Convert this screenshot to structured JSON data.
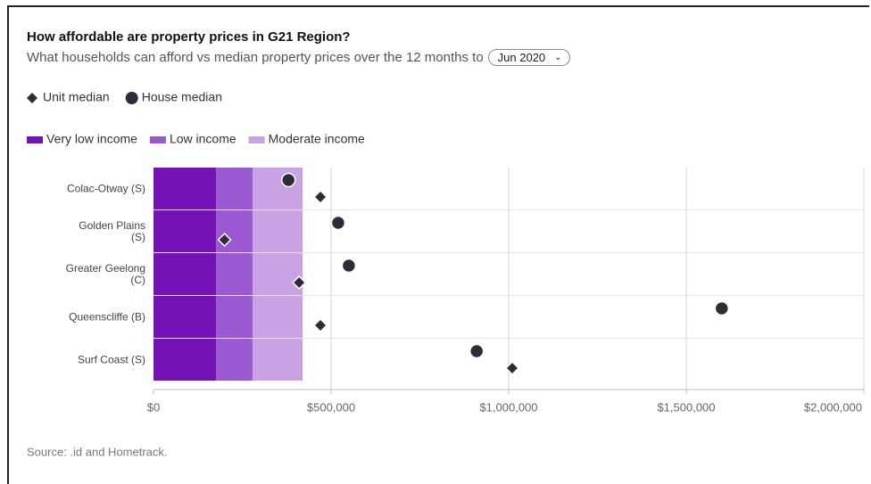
{
  "chart_data": {
    "type": "dot",
    "title": "How affordable are property prices in G21 Region?",
    "subtitle": "What households can afford vs median property prices over the 12 months to",
    "selected_period": "Jun 2020",
    "categories": [
      "Colac-Otway (S)",
      "Golden Plains\n(S)",
      "Greater Geelong\n(C)",
      "Queenscliffe (B)",
      "Surf Coast (S)"
    ],
    "series": [
      {
        "name": "Very low income",
        "color": "#7412b8",
        "values": [
          176000,
          176000,
          176000,
          176000,
          176000
        ]
      },
      {
        "name": "Low income",
        "color": "#9b59d1",
        "values": [
          103000,
          103000,
          103000,
          103000,
          103000
        ]
      },
      {
        "name": "Moderate income",
        "color": "#c9a2e4",
        "values": [
          141000,
          141000,
          141000,
          141000,
          141000
        ]
      },
      {
        "name": "Unit median",
        "color": "#2b2d38",
        "marker": "diamond",
        "values": [
          470000,
          200000,
          410000,
          470000,
          1010000
        ]
      },
      {
        "name": "House median",
        "color": "#2b2d38",
        "marker": "circle",
        "values": [
          380000,
          520000,
          550000,
          1600000,
          910000
        ]
      }
    ],
    "xlim": [
      0,
      2000000
    ],
    "xticks": [
      {
        "value": 0,
        "label": "$0"
      },
      {
        "value": 500000,
        "label": "$500,000"
      },
      {
        "value": 1000000,
        "label": "$1,000,000"
      },
      {
        "value": 1500000,
        "label": "$1,500,000"
      },
      {
        "value": 2000000,
        "label": "$2,000,000"
      }
    ],
    "grid": true,
    "source": "Source: .id and Hometrack."
  }
}
